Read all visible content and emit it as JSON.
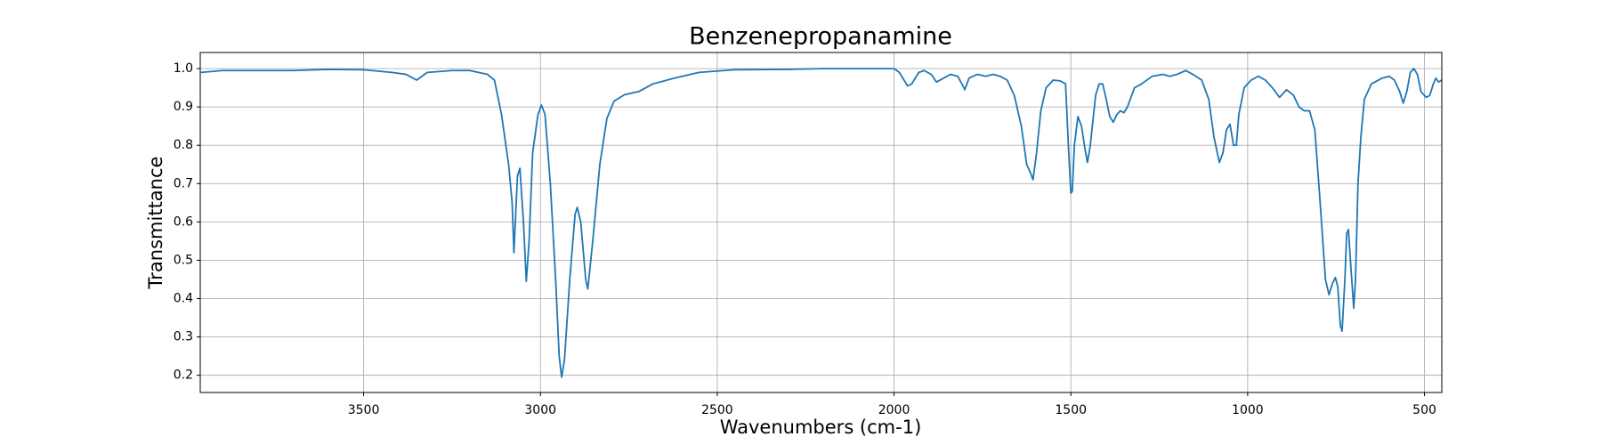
{
  "chart_data": {
    "type": "line",
    "title": "Benzenepropanamine",
    "x_label": "Wavenumbers (cm-1)",
    "y_label": "Transmittance",
    "color": "#1f77b4",
    "grid": true,
    "xlim": [
      3962,
      451
    ],
    "ylim": [
      0.155,
      1.042
    ],
    "xticks": [
      3500,
      3000,
      2500,
      2000,
      1500,
      1000,
      500
    ],
    "yticks": [
      0.2,
      0.3,
      0.4,
      0.5,
      0.6,
      0.7,
      0.8,
      0.9,
      {
        "value": 1,
        "label": "1.0"
      }
    ],
    "x": [
      3960,
      3900,
      3800,
      3700,
      3600,
      3500,
      3420,
      3380,
      3350,
      3320,
      3250,
      3200,
      3150,
      3130,
      3110,
      3090,
      3080,
      3075,
      3065,
      3058,
      3048,
      3040,
      3032,
      3022,
      3007,
      2997,
      2987,
      2972,
      2957,
      2947,
      2940,
      2932,
      2917,
      2902,
      2896,
      2886,
      2872,
      2866,
      2852,
      2832,
      2812,
      2792,
      2762,
      2722,
      2682,
      2622,
      2552,
      2452,
      2300,
      2200,
      2100,
      2000,
      1985,
      1962,
      1950,
      1930,
      1915,
      1895,
      1880,
      1860,
      1840,
      1820,
      1808,
      1800,
      1788,
      1765,
      1740,
      1720,
      1700,
      1680,
      1660,
      1640,
      1625,
      1615,
      1607,
      1597,
      1585,
      1570,
      1550,
      1530,
      1515,
      1507,
      1500,
      1496,
      1490,
      1480,
      1470,
      1460,
      1453,
      1445,
      1430,
      1420,
      1410,
      1400,
      1390,
      1380,
      1370,
      1360,
      1350,
      1340,
      1320,
      1300,
      1270,
      1240,
      1220,
      1200,
      1175,
      1155,
      1130,
      1110,
      1095,
      1080,
      1070,
      1060,
      1050,
      1040,
      1032,
      1025,
      1010,
      990,
      970,
      950,
      930,
      910,
      890,
      870,
      855,
      840,
      825,
      810,
      795,
      780,
      770,
      760,
      752,
      745,
      738,
      733,
      725,
      720,
      715,
      708,
      700,
      695,
      688,
      680,
      670,
      650,
      620,
      600,
      585,
      570,
      560,
      550,
      540,
      530,
      520,
      510,
      495,
      485,
      475,
      468,
      460,
      451
    ],
    "values": [
      0.99,
      0.995,
      0.995,
      0.995,
      0.998,
      0.997,
      0.99,
      0.985,
      0.97,
      0.99,
      0.995,
      0.995,
      0.985,
      0.97,
      0.88,
      0.75,
      0.65,
      0.52,
      0.72,
      0.74,
      0.6,
      0.445,
      0.55,
      0.78,
      0.88,
      0.905,
      0.88,
      0.7,
      0.45,
      0.25,
      0.195,
      0.24,
      0.45,
      0.62,
      0.638,
      0.6,
      0.45,
      0.425,
      0.55,
      0.75,
      0.87,
      0.915,
      0.932,
      0.94,
      0.96,
      0.975,
      0.99,
      0.997,
      0.998,
      1.0,
      1.0,
      1.0,
      0.99,
      0.955,
      0.96,
      0.99,
      0.995,
      0.985,
      0.965,
      0.975,
      0.985,
      0.98,
      0.96,
      0.945,
      0.975,
      0.985,
      0.98,
      0.985,
      0.98,
      0.97,
      0.93,
      0.85,
      0.75,
      0.73,
      0.71,
      0.78,
      0.89,
      0.95,
      0.97,
      0.968,
      0.96,
      0.8,
      0.675,
      0.68,
      0.8,
      0.875,
      0.85,
      0.79,
      0.755,
      0.8,
      0.93,
      0.96,
      0.96,
      0.92,
      0.875,
      0.86,
      0.88,
      0.89,
      0.885,
      0.9,
      0.95,
      0.96,
      0.98,
      0.985,
      0.98,
      0.985,
      0.995,
      0.985,
      0.97,
      0.92,
      0.82,
      0.755,
      0.78,
      0.84,
      0.855,
      0.8,
      0.8,
      0.88,
      0.95,
      0.97,
      0.98,
      0.97,
      0.95,
      0.925,
      0.945,
      0.93,
      0.9,
      0.89,
      0.89,
      0.84,
      0.65,
      0.45,
      0.41,
      0.44,
      0.455,
      0.43,
      0.33,
      0.315,
      0.45,
      0.57,
      0.58,
      0.48,
      0.375,
      0.45,
      0.7,
      0.82,
      0.92,
      0.96,
      0.975,
      0.98,
      0.97,
      0.94,
      0.91,
      0.94,
      0.99,
      1.0,
      0.985,
      0.94,
      0.925,
      0.93,
      0.96,
      0.975,
      0.965,
      0.97
    ]
  }
}
